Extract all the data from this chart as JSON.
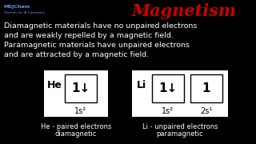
{
  "background_color": "#000000",
  "title": "Magnetism",
  "title_color": "#cc0000",
  "title_fontsize": 15,
  "watermark_line1": "MSJChem",
  "watermark_line2": "Tutorials for IB Chemistry",
  "body_text": "Diamagnetic materials have no unpaired electrons\nand are weakly repelled by a magnetic field.\nParamagnetic materials have unpaired electrons\nand are attracted by a magnetic field.",
  "body_color": "#ffffff",
  "body_fontsize": 6.8,
  "he_label": "He",
  "li_label": "Li",
  "he_box_arrows": "1↓",
  "li_box1_arrows": "1↓",
  "li_box2_arrows": "1",
  "he_orbital": "1s²",
  "li_orbital1": "1s²",
  "li_orbital2": "2s¹",
  "he_caption1": "He - paired electrons",
  "he_caption2": "diamagnetic",
  "li_caption1": "Li - unpaired electrons",
  "li_caption2": "paramagnetic",
  "watermark_color": "#6699ff"
}
